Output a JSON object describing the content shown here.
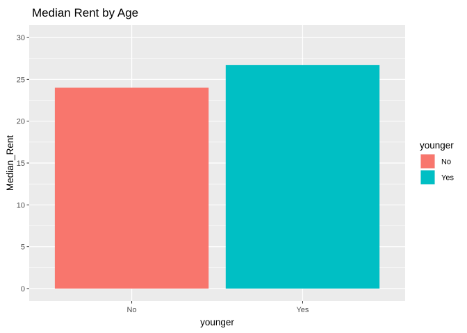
{
  "chart_data": {
    "type": "bar",
    "title": "Median Rent by Age",
    "xlabel": "younger",
    "ylabel": "Median_Rent",
    "categories": [
      "No",
      "Yes"
    ],
    "values": [
      24,
      26.7
    ],
    "colors": [
      "#F8766D",
      "#00BFC4"
    ],
    "ylim": [
      0,
      30
    ],
    "yticks": [
      0,
      5,
      10,
      15,
      20,
      25,
      30
    ],
    "grid": true,
    "legend": {
      "title": "younger",
      "placement": "right",
      "entries": [
        "No",
        "Yes"
      ]
    },
    "panel_background": "#EBEBEB",
    "grid_color": "#FFFFFF"
  }
}
